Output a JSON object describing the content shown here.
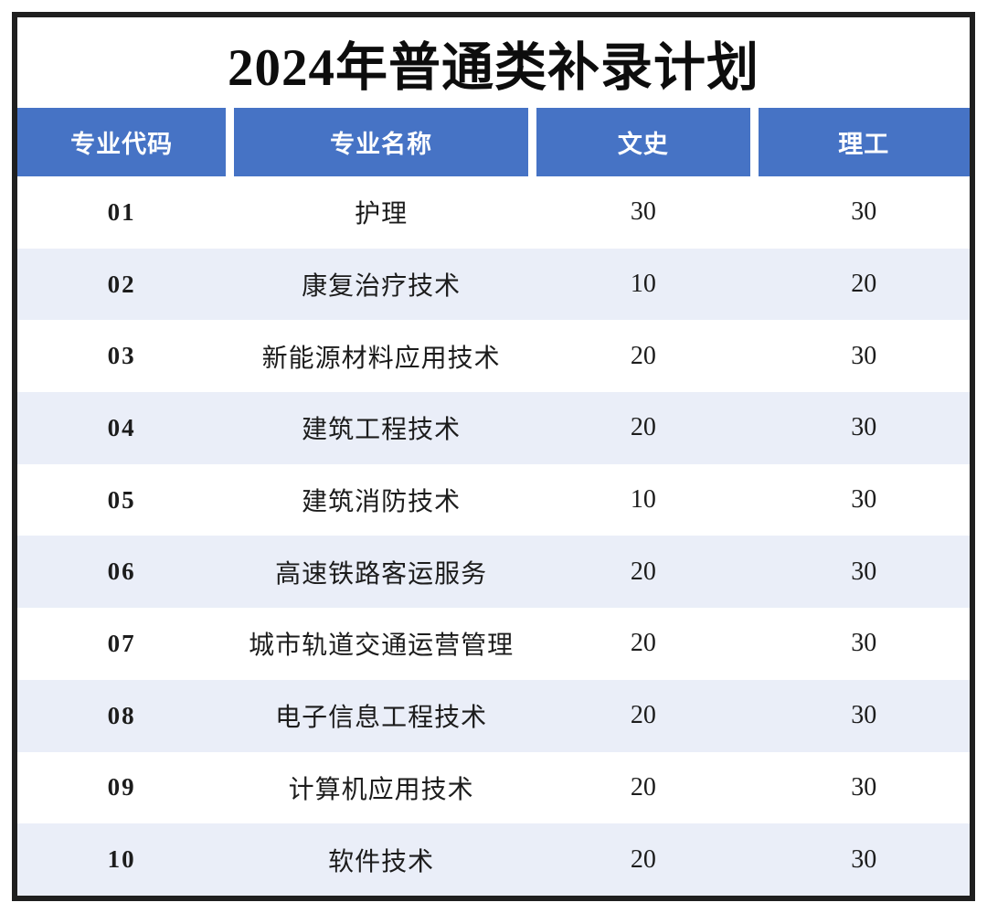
{
  "title": "2024年普通类补录计划",
  "table": {
    "headers": [
      "专业代码",
      "专业名称",
      "文史",
      "理工"
    ],
    "rows": [
      {
        "code": "01",
        "name": "护理",
        "wenshi": "30",
        "ligong": "30"
      },
      {
        "code": "02",
        "name": "康复治疗技术",
        "wenshi": "10",
        "ligong": "20"
      },
      {
        "code": "03",
        "name": "新能源材料应用技术",
        "wenshi": "20",
        "ligong": "30"
      },
      {
        "code": "04",
        "name": "建筑工程技术",
        "wenshi": "20",
        "ligong": "30"
      },
      {
        "code": "05",
        "name": "建筑消防技术",
        "wenshi": "10",
        "ligong": "30"
      },
      {
        "code": "06",
        "name": "高速铁路客运服务",
        "wenshi": "20",
        "ligong": "30"
      },
      {
        "code": "07",
        "name": "城市轨道交通运营管理",
        "wenshi": "20",
        "ligong": "30"
      },
      {
        "code": "08",
        "name": "电子信息工程技术",
        "wenshi": "20",
        "ligong": "30"
      },
      {
        "code": "09",
        "name": "计算机应用技术",
        "wenshi": "20",
        "ligong": "30"
      },
      {
        "code": "10",
        "name": "软件技术",
        "wenshi": "20",
        "ligong": "30"
      }
    ]
  },
  "colors": {
    "header_bg": "#4673C5",
    "header_text": "#FFFFFF",
    "row_alt_bg": "#EAEEF8",
    "frame_border": "#1F1F1F",
    "title_text": "#0D0D0D"
  }
}
